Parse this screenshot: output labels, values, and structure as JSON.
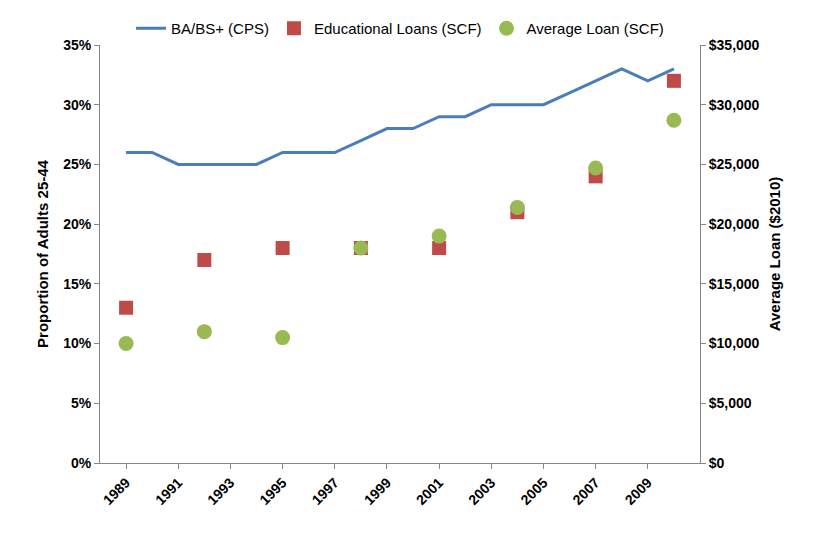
{
  "chart_data": {
    "type": "line",
    "y_label": "Proportion of Adults 25-44",
    "y2_label": "Average Loan ($2010)",
    "xlim": [
      1988,
      2011
    ],
    "xticks": [
      1989,
      1991,
      1993,
      1995,
      1997,
      1999,
      2001,
      2003,
      2005,
      2007,
      2009
    ],
    "ylim": [
      0,
      35
    ],
    "yticks": [
      {
        "value": 0,
        "label": "0%"
      },
      {
        "value": 5,
        "label": "5%"
      },
      {
        "value": 10,
        "label": "10%"
      },
      {
        "value": 15,
        "label": "15%"
      },
      {
        "value": 20,
        "label": "20%"
      },
      {
        "value": 25,
        "label": "25%"
      },
      {
        "value": 30,
        "label": "30%"
      },
      {
        "value": 35,
        "label": "35%"
      }
    ],
    "y2lim": [
      0,
      35000
    ],
    "y2ticks": [
      {
        "value": 0,
        "label": "$0"
      },
      {
        "value": 5000,
        "label": "$5,000"
      },
      {
        "value": 10000,
        "label": "$10,000"
      },
      {
        "value": 15000,
        "label": "$15,000"
      },
      {
        "value": 20000,
        "label": "$20,000"
      },
      {
        "value": 25000,
        "label": "$25,000"
      },
      {
        "value": 30000,
        "label": "$30,000"
      },
      {
        "value": 35000,
        "label": "$35,000"
      }
    ],
    "grid": false,
    "legend": "top",
    "series": [
      {
        "name": "BA/BS+ (CPS)",
        "type": "line",
        "color": "#4a7ebb",
        "line_style": "solid",
        "x": [
          1989,
          1990,
          1991,
          1992,
          1993,
          1994,
          1995,
          1996,
          1997,
          1998,
          1999,
          2000,
          2001,
          2002,
          2003,
          2004,
          2005,
          2006,
          2007,
          2008,
          2009,
          2010
        ],
        "values": [
          26,
          26,
          25,
          25,
          25,
          25,
          26,
          26,
          26,
          27,
          28,
          28,
          29,
          29,
          30,
          30,
          30,
          31,
          32,
          33,
          32,
          33
        ]
      },
      {
        "name": "Educational Loans (SCF)",
        "type": "scatter",
        "color": "#be4b48",
        "marker": "square",
        "x": [
          1989,
          1992,
          1995,
          1998,
          2001,
          2004,
          2007,
          2010
        ],
        "values": [
          13,
          17,
          18,
          18,
          18,
          21,
          24,
          32
        ]
      },
      {
        "name": "Average Loan (SCF)",
        "type": "scatter",
        "color": "#98b954",
        "marker": "circle",
        "axis": "y2",
        "x": [
          1989,
          1992,
          1995,
          1998,
          2001,
          2004,
          2007,
          2010
        ],
        "values": [
          10000,
          11000,
          10500,
          18000,
          19000,
          21400,
          24700,
          28700
        ]
      }
    ]
  }
}
